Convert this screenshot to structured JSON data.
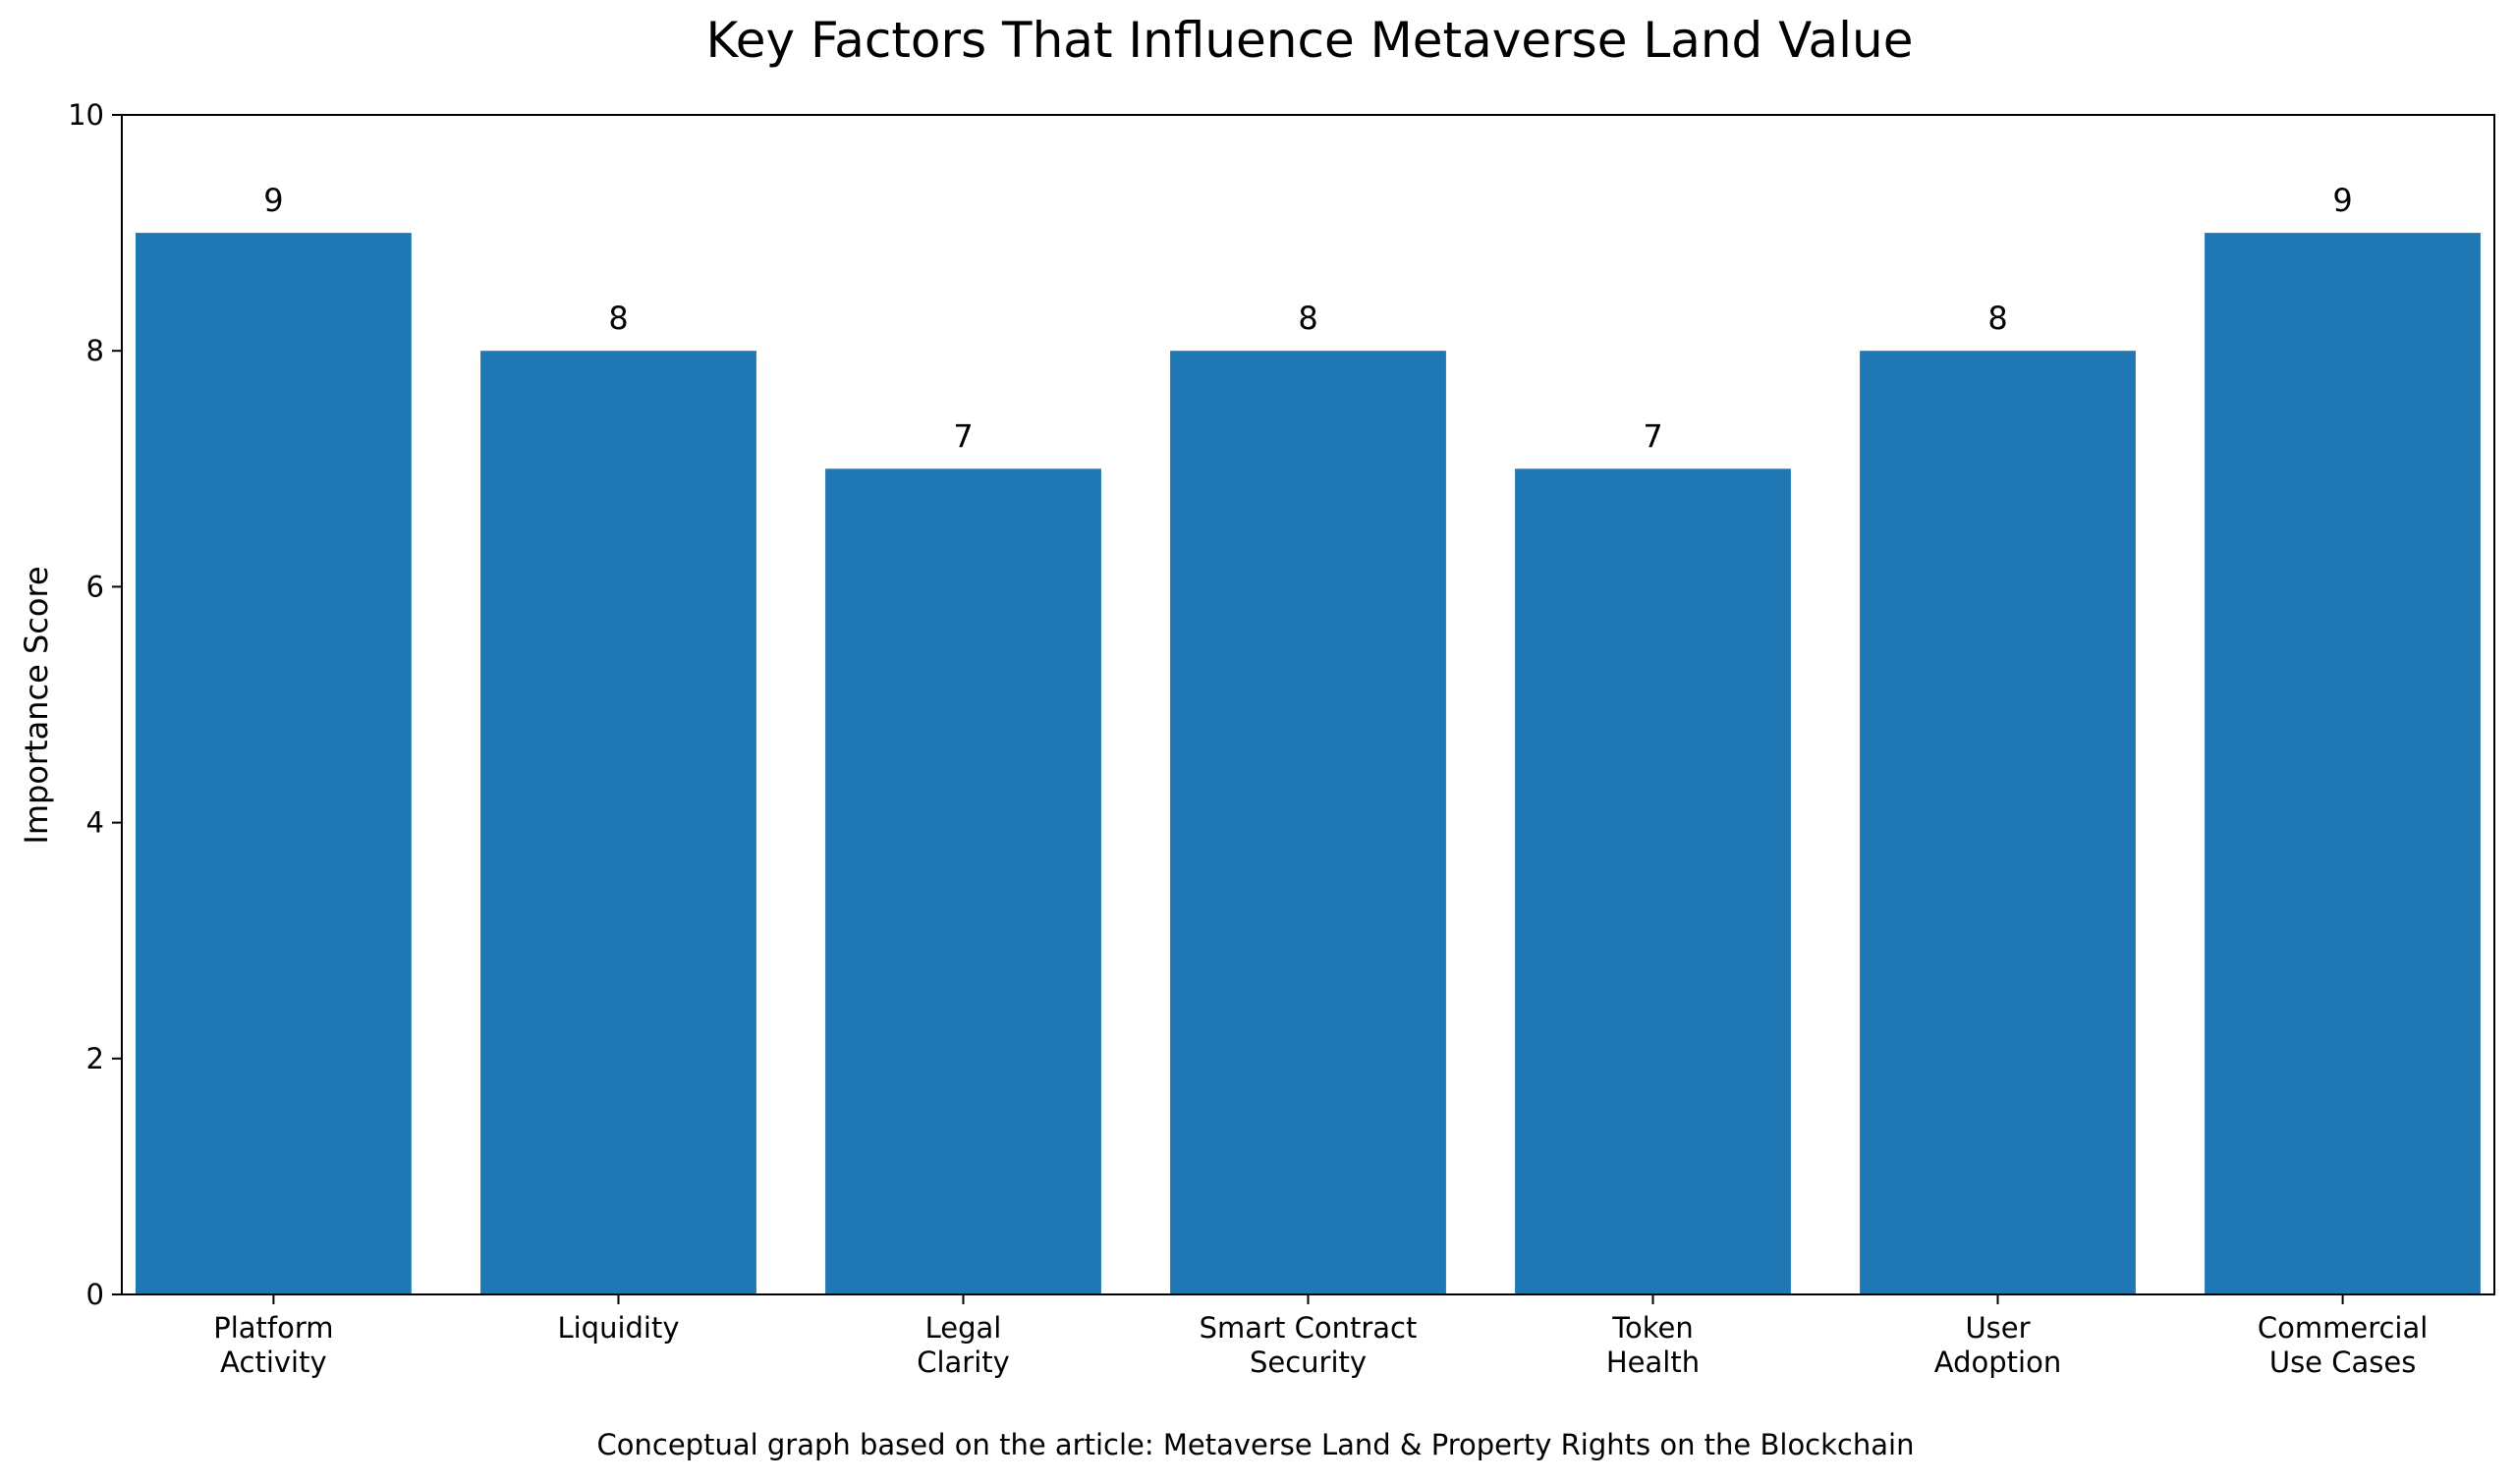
{
  "chart_data": {
    "type": "bar",
    "title": "Key Factors That Influence Metaverse Land Value",
    "xlabel": "",
    "ylabel": "Importance Score",
    "categories": [
      "Platform\nActivity",
      "Liquidity",
      "Legal\nClarity",
      "Smart Contract\nSecurity",
      "Token\nHealth",
      "User\nAdoption",
      "Commercial\nUse Cases"
    ],
    "values": [
      9,
      8,
      7,
      8,
      7,
      8,
      9
    ],
    "data_labels": [
      "9",
      "8",
      "7",
      "8",
      "7",
      "8",
      "9"
    ],
    "ylim": [
      0,
      10
    ],
    "yticks": [
      0,
      2,
      4,
      6,
      8,
      10
    ],
    "ytick_labels": [
      "0",
      "2",
      "4",
      "6",
      "8",
      "10"
    ],
    "grid": false,
    "legend": "none",
    "bar_color": "#1f77b4",
    "caption": "Conceptual graph based on the article: Metaverse Land & Property Rights on the Blockchain"
  }
}
